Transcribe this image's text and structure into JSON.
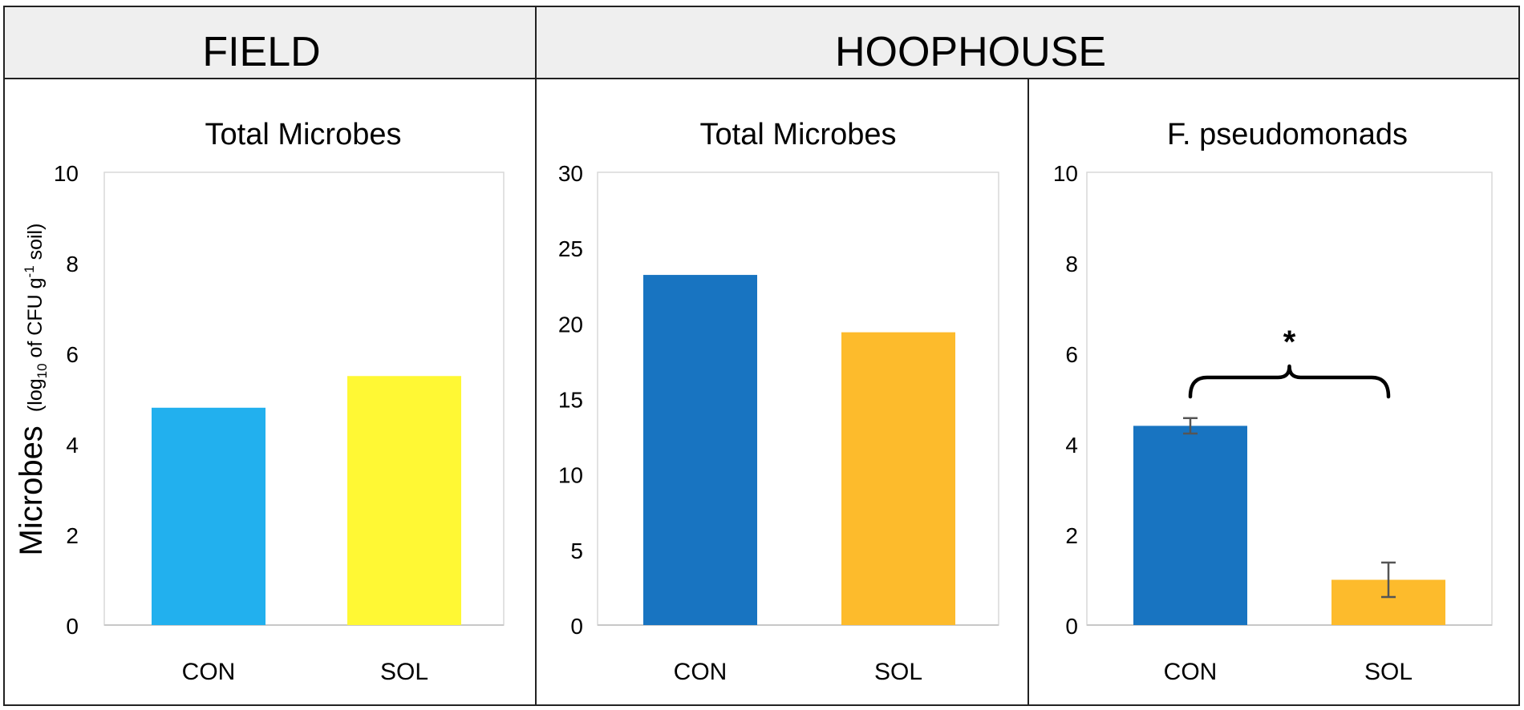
{
  "headers": {
    "field": "FIELD",
    "hoophouse": "HOOPHOUSE"
  },
  "y_axis_label": {
    "main": "Microbes",
    "paren_open": "(log",
    "sub": "10",
    "mid": " of CFU g",
    "sup": "-1",
    "end": " soil)"
  },
  "chart_data": [
    {
      "type": "bar",
      "title": "Total Microbes",
      "categories": [
        "CON",
        "SOL"
      ],
      "values": [
        4.8,
        5.5
      ],
      "ylim": [
        0,
        10
      ],
      "yticks": [
        0,
        2,
        4,
        6,
        8,
        10
      ],
      "colors": [
        "#22b0ee",
        "#fff834"
      ],
      "grid": false
    },
    {
      "type": "bar",
      "title": "Total Microbes",
      "categories": [
        "CON",
        "SOL"
      ],
      "values": [
        23.2,
        19.4
      ],
      "ylim": [
        0,
        30
      ],
      "yticks": [
        0,
        5,
        10,
        15,
        20,
        25,
        30
      ],
      "colors": [
        "#1874c1",
        "#fdbb2c"
      ],
      "grid": false
    },
    {
      "type": "bar",
      "title": "F. pseudomonads",
      "categories": [
        "CON",
        "SOL"
      ],
      "values": [
        4.4,
        1.0
      ],
      "errors": [
        0.17,
        0.38
      ],
      "ylim": [
        0,
        10
      ],
      "yticks": [
        0,
        2,
        4,
        6,
        8,
        10
      ],
      "colors": [
        "#1874c1",
        "#fdbb2c"
      ],
      "significance": "*",
      "grid": false
    }
  ]
}
